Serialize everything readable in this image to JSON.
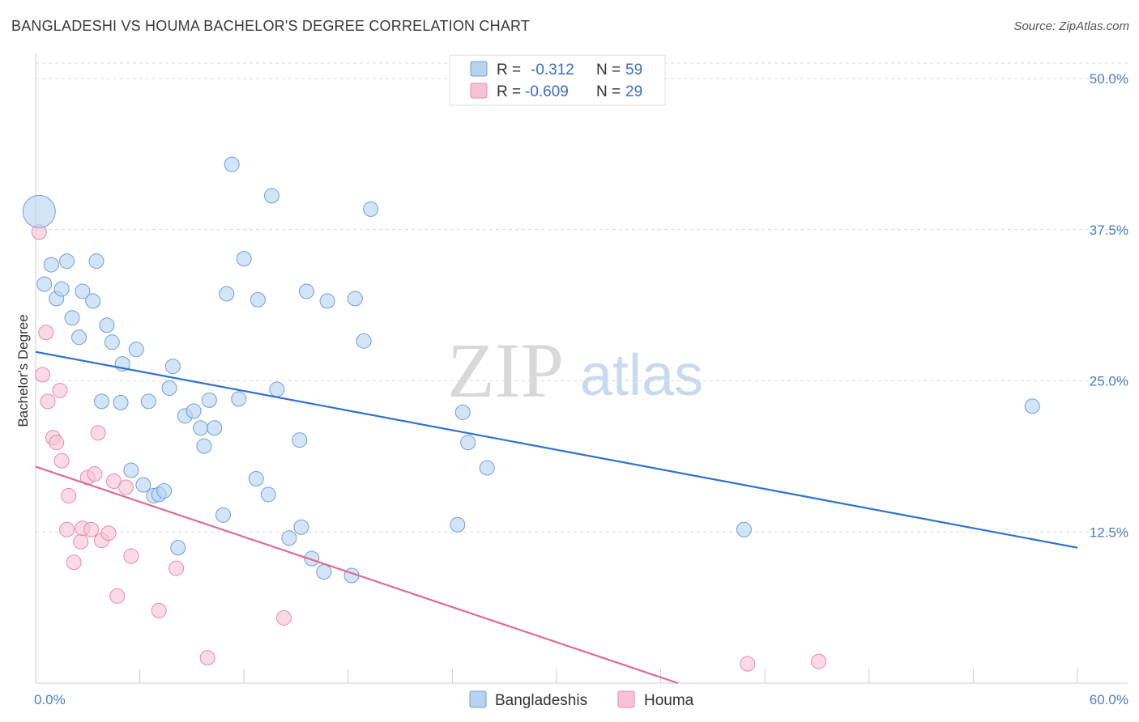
{
  "header": {
    "title": "BANGLADESHI VS HOUMA BACHELOR'S DEGREE CORRELATION CHART",
    "source": "Source: ZipAtlas.com"
  },
  "watermark": {
    "zip": "ZIP",
    "atlas": "atlas"
  },
  "colors": {
    "blue_fill": "#b8d2f2",
    "blue_stroke": "#6f9fd8",
    "blue_line": "#2f72cc",
    "pink_fill": "#f7c3d3",
    "pink_stroke": "#e88aa8",
    "pink_line": "#e06a94",
    "grid": "#d9d9d9",
    "tick_text": "#4a7cc7"
  },
  "legend": {
    "rows": [
      {
        "r_label": "R =",
        "r_value": "-0.312",
        "n_label": "N =",
        "n_value": "59",
        "series": "blue"
      },
      {
        "r_label": "R =",
        "r_value": "-0.609",
        "n_label": "N =",
        "n_value": "29",
        "series": "pink"
      }
    ]
  },
  "bottom_legend": [
    "Bangladeshis",
    "Houma"
  ],
  "chart_data": {
    "type": "scatter",
    "title": "BANGLADESHI VS HOUMA BACHELOR'S DEGREE CORRELATION CHART",
    "xlabel": "",
    "ylabel": "Bachelor's Degree",
    "xlim": [
      0,
      60
    ],
    "ylim": [
      0,
      52
    ],
    "x_tick_labels": [
      {
        "value": 0,
        "label": "0.0%"
      },
      {
        "value": 60,
        "label": "60.0%"
      }
    ],
    "y_tick_labels": [
      {
        "value": 12.5,
        "label": "12.5%"
      },
      {
        "value": 25.0,
        "label": "25.0%"
      },
      {
        "value": 37.5,
        "label": "37.5%"
      },
      {
        "value": 50.0,
        "label": "50.0%"
      }
    ],
    "series": [
      {
        "name": "Bangladeshis",
        "color": "blue",
        "trendline": {
          "x": [
            0,
            60
          ],
          "y": [
            27.4,
            11.2
          ]
        },
        "points": [
          {
            "x": 0.2,
            "y": 39.0,
            "big": true
          },
          {
            "x": 0.5,
            "y": 33.0
          },
          {
            "x": 0.9,
            "y": 34.6
          },
          {
            "x": 1.2,
            "y": 31.8
          },
          {
            "x": 1.5,
            "y": 32.6
          },
          {
            "x": 1.8,
            "y": 34.9
          },
          {
            "x": 2.1,
            "y": 30.2
          },
          {
            "x": 2.5,
            "y": 28.6
          },
          {
            "x": 2.7,
            "y": 32.4
          },
          {
            "x": 3.3,
            "y": 31.6
          },
          {
            "x": 3.5,
            "y": 34.9
          },
          {
            "x": 3.8,
            "y": 23.3
          },
          {
            "x": 4.1,
            "y": 29.6
          },
          {
            "x": 4.4,
            "y": 28.2
          },
          {
            "x": 4.9,
            "y": 23.2
          },
          {
            "x": 5.0,
            "y": 26.4
          },
          {
            "x": 5.5,
            "y": 17.6
          },
          {
            "x": 5.8,
            "y": 27.6
          },
          {
            "x": 6.2,
            "y": 16.4
          },
          {
            "x": 6.5,
            "y": 23.3
          },
          {
            "x": 6.8,
            "y": 15.5
          },
          {
            "x": 7.1,
            "y": 15.6
          },
          {
            "x": 7.4,
            "y": 15.9
          },
          {
            "x": 7.7,
            "y": 24.4
          },
          {
            "x": 7.9,
            "y": 26.2
          },
          {
            "x": 8.2,
            "y": 11.2
          },
          {
            "x": 8.6,
            "y": 22.1
          },
          {
            "x": 9.1,
            "y": 22.5
          },
          {
            "x": 9.5,
            "y": 21.1
          },
          {
            "x": 9.7,
            "y": 19.6
          },
          {
            "x": 10.0,
            "y": 23.4
          },
          {
            "x": 10.3,
            "y": 21.1
          },
          {
            "x": 10.8,
            "y": 13.9
          },
          {
            "x": 11.0,
            "y": 32.2
          },
          {
            "x": 11.3,
            "y": 42.9
          },
          {
            "x": 11.7,
            "y": 23.5
          },
          {
            "x": 12.0,
            "y": 35.1
          },
          {
            "x": 12.8,
            "y": 31.7
          },
          {
            "x": 12.7,
            "y": 16.9
          },
          {
            "x": 13.4,
            "y": 15.6
          },
          {
            "x": 13.6,
            "y": 40.3
          },
          {
            "x": 13.9,
            "y": 24.3
          },
          {
            "x": 14.6,
            "y": 12.0
          },
          {
            "x": 15.2,
            "y": 20.1
          },
          {
            "x": 15.3,
            "y": 12.9
          },
          {
            "x": 15.6,
            "y": 32.4
          },
          {
            "x": 15.9,
            "y": 10.3
          },
          {
            "x": 16.6,
            "y": 9.2
          },
          {
            "x": 16.8,
            "y": 31.6
          },
          {
            "x": 18.2,
            "y": 8.9
          },
          {
            "x": 18.4,
            "y": 31.8
          },
          {
            "x": 18.9,
            "y": 28.3
          },
          {
            "x": 19.3,
            "y": 39.2
          },
          {
            "x": 24.3,
            "y": 13.1
          },
          {
            "x": 24.6,
            "y": 22.4
          },
          {
            "x": 24.9,
            "y": 19.9
          },
          {
            "x": 26.0,
            "y": 17.8
          },
          {
            "x": 40.8,
            "y": 12.7
          },
          {
            "x": 57.4,
            "y": 22.9
          }
        ]
      },
      {
        "name": "Houma",
        "color": "pink",
        "trendline": {
          "x": [
            0,
            37.0
          ],
          "y": [
            17.9,
            0.0
          ]
        },
        "points": [
          {
            "x": 0.2,
            "y": 37.3
          },
          {
            "x": 0.6,
            "y": 29.0
          },
          {
            "x": 0.4,
            "y": 25.5
          },
          {
            "x": 0.7,
            "y": 23.3
          },
          {
            "x": 1.0,
            "y": 20.3
          },
          {
            "x": 1.2,
            "y": 19.9
          },
          {
            "x": 1.4,
            "y": 24.2
          },
          {
            "x": 1.5,
            "y": 18.4
          },
          {
            "x": 1.8,
            "y": 12.7
          },
          {
            "x": 1.9,
            "y": 15.5
          },
          {
            "x": 2.2,
            "y": 10.0
          },
          {
            "x": 2.6,
            "y": 11.7
          },
          {
            "x": 2.7,
            "y": 12.8
          },
          {
            "x": 3.0,
            "y": 17.0
          },
          {
            "x": 3.2,
            "y": 12.7
          },
          {
            "x": 3.4,
            "y": 17.3
          },
          {
            "x": 3.6,
            "y": 20.7
          },
          {
            "x": 3.8,
            "y": 11.8
          },
          {
            "x": 4.2,
            "y": 12.4
          },
          {
            "x": 4.5,
            "y": 16.7
          },
          {
            "x": 4.7,
            "y": 7.2
          },
          {
            "x": 5.2,
            "y": 16.2
          },
          {
            "x": 5.5,
            "y": 10.5
          },
          {
            "x": 7.1,
            "y": 6.0
          },
          {
            "x": 8.1,
            "y": 9.5
          },
          {
            "x": 9.9,
            "y": 2.1
          },
          {
            "x": 14.3,
            "y": 5.4
          },
          {
            "x": 41.0,
            "y": 1.6
          },
          {
            "x": 45.1,
            "y": 1.8
          }
        ]
      }
    ]
  }
}
